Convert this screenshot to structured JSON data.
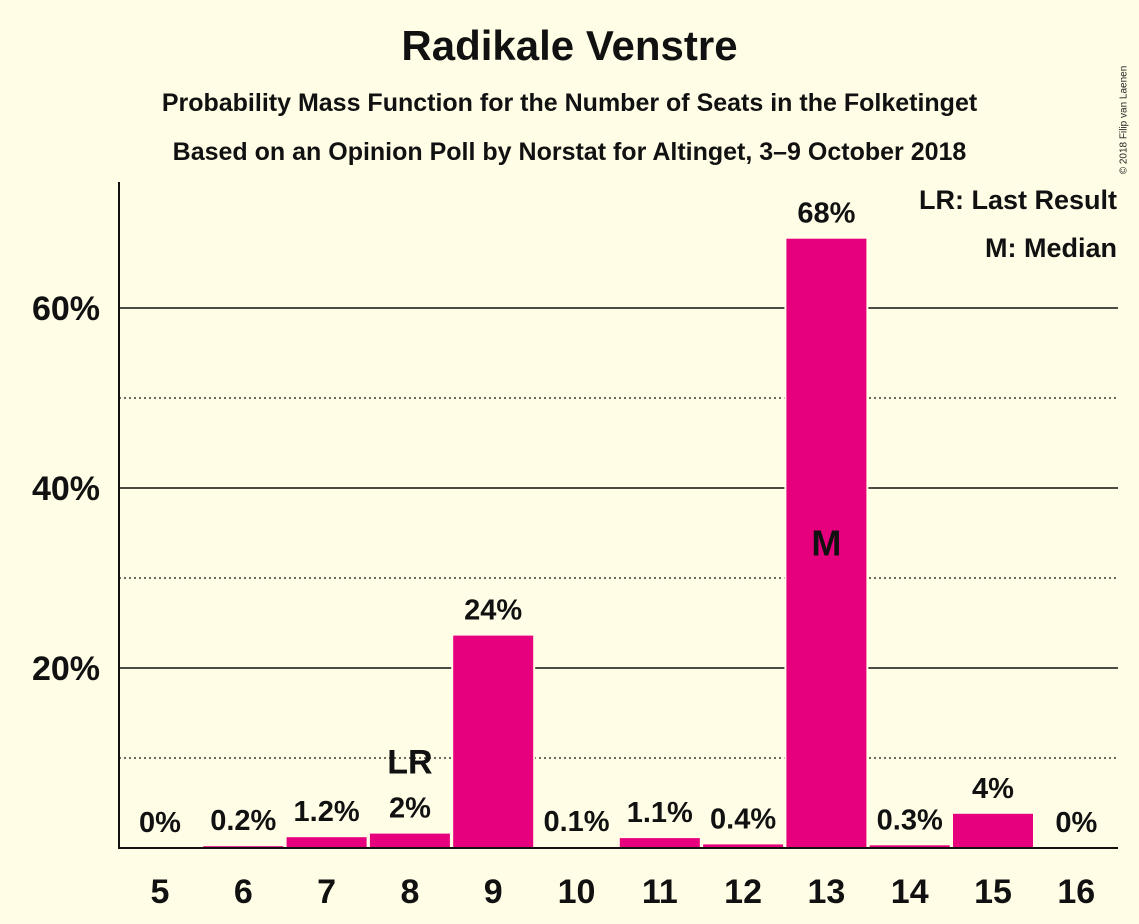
{
  "colors": {
    "background": "#FFFDE6",
    "bar": "#E6007E",
    "text": "#111111"
  },
  "header": {
    "title": "Radikale Venstre",
    "subtitle1": "Probability Mass Function for the Number of Seats in the Folketinget",
    "subtitle2": "Based on an Opinion Poll by Norstat for Altinget, 3–9 October 2018",
    "copyright": "© 2018 Filip van Laenen"
  },
  "legend": {
    "lr": "LR: Last Result",
    "m": "M: Median"
  },
  "chart_data": {
    "type": "bar",
    "title": "Radikale Venstre",
    "categories": [
      "5",
      "6",
      "7",
      "8",
      "9",
      "10",
      "11",
      "12",
      "13",
      "14",
      "15",
      "16"
    ],
    "values": [
      0,
      0.2,
      1.2,
      1.6,
      23.6,
      0.1,
      1.1,
      0.4,
      67.7,
      0.3,
      3.8,
      0
    ],
    "value_labels": [
      "0%",
      "0.2%",
      "1.2%",
      "2%",
      "24%",
      "0.1%",
      "1.1%",
      "0.4%",
      "68%",
      "0.3%",
      "4%",
      "0%"
    ],
    "ylim": [
      0,
      74
    ],
    "y_ticks": [
      20,
      40,
      60
    ],
    "y_tick_labels": [
      "20%",
      "40%",
      "60%"
    ],
    "y_minor_ticks": [
      10,
      30,
      50
    ],
    "grid": true,
    "legend_position": "top-right",
    "markers": [
      {
        "category": "8",
        "text": "LR"
      },
      {
        "category": "13",
        "text": "M"
      }
    ]
  }
}
